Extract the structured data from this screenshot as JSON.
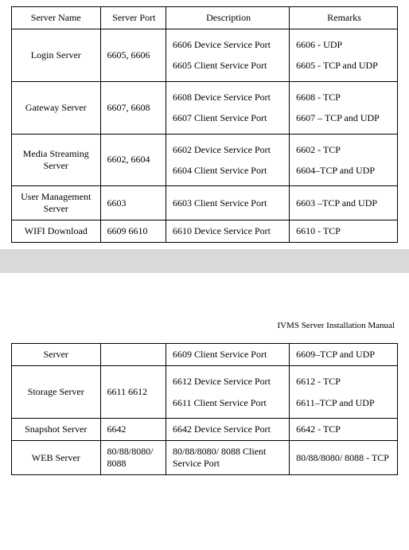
{
  "table1": {
    "headers": {
      "server_name": "Server Name",
      "server_port": "Server Port",
      "description": "Description",
      "remarks": "Remarks"
    },
    "rows": [
      {
        "name": "Login Server",
        "port": "6605, 6606",
        "desc1": "6606 Device Service Port",
        "desc2": "6605 Client Service Port",
        "rem1": "6606 - UDP",
        "rem2": "6605 - TCP and UDP"
      },
      {
        "name": "Gateway Server",
        "port": "6607, 6608",
        "desc1": "6608 Device Service Port",
        "desc2": "6607 Client Service Port",
        "rem1": "6608 - TCP",
        "rem2": "6607 – TCP and UDP"
      },
      {
        "name": "Media Streaming Server",
        "port": "6602, 6604",
        "desc1": "6602 Device Service Port",
        "desc2": "6604 Client Service Port",
        "rem1": "6602 - TCP",
        "rem2": "6604–TCP and UDP"
      },
      {
        "name": "User Management Server",
        "port": "6603",
        "desc1": "6603 Client Service Port",
        "desc2": "",
        "rem1": "6603 –TCP and UDP",
        "rem2": ""
      },
      {
        "name": "WIFI Download",
        "port": "6609 6610",
        "desc1": "6610 Device Service Port",
        "desc2": "",
        "rem1": "6610 - TCP",
        "rem2": ""
      }
    ]
  },
  "manual_title": "IVMS Server Installation Manual",
  "table2": {
    "rows": [
      {
        "name": "Server",
        "port": "",
        "desc1": "6609 Client Service Port",
        "desc2": "",
        "rem1": "6609–TCP and UDP",
        "rem2": ""
      },
      {
        "name": "Storage Server",
        "port": "6611 6612",
        "desc1": "6612 Device Service Port",
        "desc2": "6611 Client Service Port",
        "rem1": "6612 - TCP",
        "rem2": "6611–TCP and UDP"
      },
      {
        "name": "Snapshot Server",
        "port": "6642",
        "desc1": "6642 Device Service Port",
        "desc2": "",
        "rem1": "6642 - TCP",
        "rem2": ""
      },
      {
        "name": "WEB Server",
        "port": "80/88/8080/ 8088",
        "desc1": "80/88/8080/ 8088 Client Service Port",
        "desc2": "",
        "rem1": "80/88/8080/ 8088 - TCP",
        "rem2": ""
      }
    ]
  }
}
